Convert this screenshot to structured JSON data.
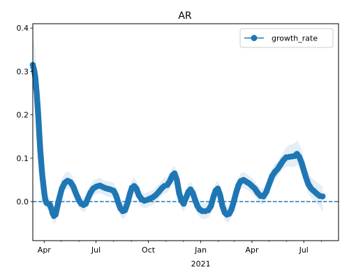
{
  "chart_data": {
    "type": "line",
    "title": "AR",
    "xlabel": "",
    "ylabel": "",
    "x_axis": {
      "type": "date",
      "range": [
        "2020-03-12",
        "2021-08-31"
      ],
      "major_ticks": [
        {
          "date": "2020-04-01",
          "label": "Apr"
        },
        {
          "date": "2020-07-01",
          "label": "Jul"
        },
        {
          "date": "2020-10-01",
          "label": "Oct"
        },
        {
          "date": "2021-01-01",
          "label": "Jan"
        },
        {
          "date": "2021-04-01",
          "label": "Apr"
        },
        {
          "date": "2021-07-01",
          "label": "Jul"
        }
      ],
      "year_label": {
        "date": "2021-01-01",
        "label": "2021"
      }
    },
    "ylim": [
      -0.09,
      0.41
    ],
    "y_ticks": [
      {
        "value": 0.0,
        "label": "0.0"
      },
      {
        "value": 0.1,
        "label": "0.1"
      },
      {
        "value": 0.2,
        "label": "0.2"
      },
      {
        "value": 0.3,
        "label": "0.3"
      },
      {
        "value": 0.4,
        "label": "0.4"
      }
    ],
    "reference_line": {
      "y": 0,
      "style": "dashed"
    },
    "legend": {
      "position": "top-right",
      "entries": [
        "growth_rate"
      ]
    },
    "series": [
      {
        "name": "growth_rate",
        "color": "#1f77b4",
        "band_color": "#1f77b4",
        "points": [
          [
            "2020-03-12",
            0.315,
            0.26,
            0.38
          ],
          [
            "2020-03-14",
            0.305,
            0.25,
            0.37
          ],
          [
            "2020-03-16",
            0.29,
            0.24,
            0.35
          ],
          [
            "2020-03-17",
            0.278,
            0.23,
            0.33
          ],
          [
            "2020-03-18",
            0.262,
            0.22,
            0.31
          ],
          [
            "2020-03-19",
            0.248,
            0.21,
            0.29
          ],
          [
            "2020-03-20",
            0.228,
            0.19,
            0.27
          ],
          [
            "2020-03-21",
            0.21,
            0.17,
            0.25
          ],
          [
            "2020-03-22",
            0.188,
            0.15,
            0.22
          ],
          [
            "2020-03-23",
            0.165,
            0.13,
            0.2
          ],
          [
            "2020-03-24",
            0.142,
            0.11,
            0.17
          ],
          [
            "2020-03-25",
            0.12,
            0.09,
            0.15
          ],
          [
            "2020-03-26",
            0.103,
            0.075,
            0.13
          ],
          [
            "2020-03-27",
            0.087,
            0.06,
            0.115
          ],
          [
            "2020-03-28",
            0.07,
            0.045,
            0.095
          ],
          [
            "2020-03-29",
            0.056,
            0.035,
            0.08
          ],
          [
            "2020-03-30",
            0.045,
            0.025,
            0.068
          ],
          [
            "2020-03-31",
            0.033,
            0.015,
            0.055
          ],
          [
            "2020-04-01",
            0.022,
            0.005,
            0.042
          ],
          [
            "2020-04-02",
            0.012,
            -0.005,
            0.03
          ],
          [
            "2020-04-03",
            0.004,
            -0.012,
            0.02
          ],
          [
            "2020-04-05",
            -0.003,
            -0.018,
            0.012
          ],
          [
            "2020-04-08",
            -0.005,
            -0.02,
            0.01
          ],
          [
            "2020-04-11",
            -0.007,
            -0.022,
            0.008
          ],
          [
            "2020-04-14",
            -0.018,
            -0.035,
            0.0
          ],
          [
            "2020-04-16",
            -0.028,
            -0.045,
            -0.01
          ],
          [
            "2020-04-18",
            -0.033,
            -0.05,
            -0.015
          ],
          [
            "2020-04-21",
            -0.03,
            -0.048,
            -0.012
          ],
          [
            "2020-04-24",
            -0.012,
            -0.03,
            0.008
          ],
          [
            "2020-04-28",
            0.01,
            -0.008,
            0.03
          ],
          [
            "2020-05-02",
            0.03,
            0.012,
            0.052
          ],
          [
            "2020-05-07",
            0.043,
            0.025,
            0.065
          ],
          [
            "2020-05-12",
            0.048,
            0.03,
            0.07
          ],
          [
            "2020-05-17",
            0.045,
            0.027,
            0.065
          ],
          [
            "2020-05-22",
            0.035,
            0.018,
            0.055
          ],
          [
            "2020-05-27",
            0.018,
            0.0,
            0.038
          ],
          [
            "2020-06-01",
            0.003,
            -0.015,
            0.02
          ],
          [
            "2020-06-05",
            -0.005,
            -0.02,
            0.012
          ],
          [
            "2020-06-09",
            -0.008,
            -0.025,
            0.008
          ],
          [
            "2020-06-13",
            -0.005,
            -0.02,
            0.012
          ],
          [
            "2020-06-17",
            0.008,
            -0.01,
            0.026
          ],
          [
            "2020-06-21",
            0.02,
            0.002,
            0.038
          ],
          [
            "2020-06-26",
            0.03,
            0.012,
            0.048
          ],
          [
            "2020-07-02",
            0.035,
            0.018,
            0.052
          ],
          [
            "2020-07-08",
            0.037,
            0.02,
            0.055
          ],
          [
            "2020-07-14",
            0.033,
            0.016,
            0.05
          ],
          [
            "2020-07-20",
            0.03,
            0.012,
            0.047
          ],
          [
            "2020-07-26",
            0.028,
            0.01,
            0.046
          ],
          [
            "2020-08-01",
            0.025,
            0.008,
            0.043
          ],
          [
            "2020-08-05",
            0.015,
            -0.003,
            0.033
          ],
          [
            "2020-08-09",
            -0.002,
            -0.02,
            0.016
          ],
          [
            "2020-08-13",
            -0.016,
            -0.034,
            0.002
          ],
          [
            "2020-08-17",
            -0.022,
            -0.04,
            -0.004
          ],
          [
            "2020-08-21",
            -0.02,
            -0.038,
            -0.002
          ],
          [
            "2020-08-25",
            -0.005,
            -0.023,
            0.013
          ],
          [
            "2020-08-29",
            0.015,
            -0.003,
            0.033
          ],
          [
            "2020-09-02",
            0.032,
            0.015,
            0.05
          ],
          [
            "2020-09-06",
            0.036,
            0.02,
            0.055
          ],
          [
            "2020-09-10",
            0.03,
            0.012,
            0.048
          ],
          [
            "2020-09-14",
            0.015,
            -0.003,
            0.033
          ],
          [
            "2020-09-19",
            0.006,
            -0.012,
            0.024
          ],
          [
            "2020-09-24",
            0.002,
            -0.015,
            0.019
          ],
          [
            "2020-09-29",
            0.004,
            -0.013,
            0.021
          ],
          [
            "2020-10-04",
            0.007,
            -0.01,
            0.024
          ],
          [
            "2020-10-09",
            0.01,
            -0.007,
            0.027
          ],
          [
            "2020-10-14",
            0.015,
            -0.002,
            0.032
          ],
          [
            "2020-10-19",
            0.022,
            0.005,
            0.04
          ],
          [
            "2020-10-24",
            0.03,
            0.012,
            0.048
          ],
          [
            "2020-10-29",
            0.036,
            0.018,
            0.055
          ],
          [
            "2020-11-03",
            0.038,
            0.02,
            0.056
          ],
          [
            "2020-11-08",
            0.048,
            0.03,
            0.066
          ],
          [
            "2020-11-12",
            0.06,
            0.042,
            0.078
          ],
          [
            "2020-11-16",
            0.065,
            0.047,
            0.083
          ],
          [
            "2020-11-20",
            0.05,
            0.032,
            0.068
          ],
          [
            "2020-11-24",
            0.02,
            0.002,
            0.038
          ],
          [
            "2020-11-28",
            0.002,
            -0.016,
            0.02
          ],
          [
            "2020-12-02",
            -0.005,
            -0.023,
            0.013
          ],
          [
            "2020-12-06",
            0.008,
            -0.01,
            0.026
          ],
          [
            "2020-12-10",
            0.022,
            0.004,
            0.04
          ],
          [
            "2020-12-14",
            0.028,
            0.01,
            0.046
          ],
          [
            "2020-12-18",
            0.02,
            0.002,
            0.038
          ],
          [
            "2020-12-22",
            0.004,
            -0.014,
            0.022
          ],
          [
            "2020-12-26",
            -0.01,
            -0.028,
            0.008
          ],
          [
            "2020-12-30",
            -0.018,
            -0.036,
            0.0
          ],
          [
            "2021-01-04",
            -0.022,
            -0.04,
            -0.004
          ],
          [
            "2021-01-09",
            -0.022,
            -0.04,
            -0.004
          ],
          [
            "2021-01-14",
            -0.02,
            -0.038,
            -0.002
          ],
          [
            "2021-01-19",
            -0.01,
            -0.028,
            0.008
          ],
          [
            "2021-01-23",
            0.01,
            -0.008,
            0.028
          ],
          [
            "2021-01-27",
            0.025,
            0.007,
            0.043
          ],
          [
            "2021-01-31",
            0.03,
            0.012,
            0.048
          ],
          [
            "2021-02-04",
            0.015,
            -0.003,
            0.033
          ],
          [
            "2021-02-08",
            -0.01,
            -0.028,
            0.008
          ],
          [
            "2021-02-12",
            -0.025,
            -0.043,
            -0.007
          ],
          [
            "2021-02-16",
            -0.03,
            -0.048,
            -0.012
          ],
          [
            "2021-02-20",
            -0.028,
            -0.046,
            -0.01
          ],
          [
            "2021-02-24",
            -0.018,
            -0.036,
            0.0
          ],
          [
            "2021-02-28",
            0.0,
            -0.018,
            0.018
          ],
          [
            "2021-03-04",
            0.02,
            0.002,
            0.038
          ],
          [
            "2021-03-08",
            0.037,
            0.019,
            0.055
          ],
          [
            "2021-03-12",
            0.047,
            0.029,
            0.065
          ],
          [
            "2021-03-17",
            0.05,
            0.032,
            0.068
          ],
          [
            "2021-03-22",
            0.046,
            0.028,
            0.064
          ],
          [
            "2021-03-27",
            0.042,
            0.024,
            0.06
          ],
          [
            "2021-04-01",
            0.036,
            0.018,
            0.054
          ],
          [
            "2021-04-06",
            0.03,
            0.012,
            0.048
          ],
          [
            "2021-04-11",
            0.02,
            0.002,
            0.038
          ],
          [
            "2021-04-16",
            0.013,
            -0.005,
            0.031
          ],
          [
            "2021-04-21",
            0.012,
            -0.006,
            0.03
          ],
          [
            "2021-04-26",
            0.022,
            0.004,
            0.04
          ],
          [
            "2021-05-01",
            0.04,
            0.022,
            0.058
          ],
          [
            "2021-05-06",
            0.058,
            0.04,
            0.076
          ],
          [
            "2021-05-11",
            0.068,
            0.05,
            0.086
          ],
          [
            "2021-05-16",
            0.075,
            0.057,
            0.093
          ],
          [
            "2021-05-21",
            0.085,
            0.067,
            0.103
          ],
          [
            "2021-05-26",
            0.095,
            0.075,
            0.115
          ],
          [
            "2021-05-31",
            0.102,
            0.08,
            0.125
          ],
          [
            "2021-06-05",
            0.103,
            0.08,
            0.13
          ],
          [
            "2021-06-10",
            0.104,
            0.08,
            0.132
          ],
          [
            "2021-06-15",
            0.105,
            0.08,
            0.135
          ],
          [
            "2021-06-19",
            0.11,
            0.085,
            0.14
          ],
          [
            "2021-06-23",
            0.103,
            0.078,
            0.133
          ],
          [
            "2021-06-27",
            0.09,
            0.065,
            0.12
          ],
          [
            "2021-07-01",
            0.072,
            0.048,
            0.1
          ],
          [
            "2021-07-05",
            0.055,
            0.032,
            0.082
          ],
          [
            "2021-07-09",
            0.04,
            0.018,
            0.066
          ],
          [
            "2021-07-14",
            0.03,
            0.008,
            0.056
          ],
          [
            "2021-07-19",
            0.024,
            0.002,
            0.05
          ],
          [
            "2021-07-24",
            0.018,
            -0.005,
            0.045
          ],
          [
            "2021-07-29",
            0.013,
            -0.012,
            0.04
          ],
          [
            "2021-08-03",
            0.012,
            -0.025,
            0.035
          ]
        ]
      }
    ]
  }
}
